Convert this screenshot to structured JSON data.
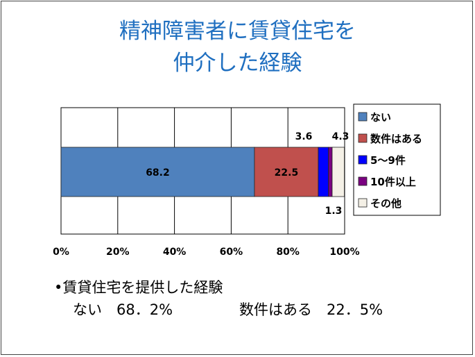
{
  "title": {
    "line1": "精神障害者に賃貸住宅を",
    "line2": "仲介した経験"
  },
  "chart_data": {
    "type": "bar",
    "orientation": "horizontal",
    "stacked": true,
    "xlim": [
      0,
      100
    ],
    "x_tick_labels": [
      "0%",
      "20%",
      "40%",
      "60%",
      "80%",
      "100%"
    ],
    "grid": true,
    "legend_position": "right",
    "series": [
      {
        "name": "ない",
        "value": 68.2,
        "color": "#4f81bd",
        "label": "68.2"
      },
      {
        "name": "数件はある",
        "value": 22.5,
        "color": "#c0504d",
        "label": "22.5"
      },
      {
        "name": "5～9件",
        "value": 3.6,
        "color": "#0000ff",
        "label": "3.6"
      },
      {
        "name": "10件以上",
        "value": 1.3,
        "color": "#7a0080",
        "label": "1.3"
      },
      {
        "name": "その他",
        "value": 4.3,
        "color": "#f4f0e6",
        "label": "4.3"
      }
    ]
  },
  "notes": {
    "bullet_text": "賃貸住宅を提供した経験",
    "none_text": "ない　68．2%",
    "several_text": "数件はある　22．5%"
  }
}
